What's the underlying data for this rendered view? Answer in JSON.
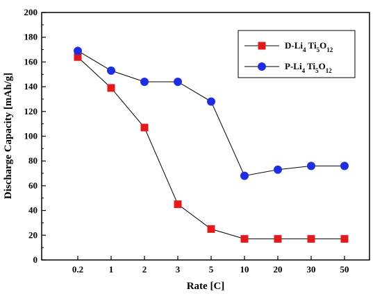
{
  "chart_data": {
    "type": "line",
    "categories": [
      "0.2",
      "1",
      "2",
      "3",
      "5",
      "10",
      "20",
      "30",
      "50"
    ],
    "xlabel": "Rate [C]",
    "ylabel": "Discharge Capacity [mAh/g]",
    "ylim": [
      0,
      200
    ],
    "yticks": [
      0,
      20,
      40,
      60,
      80,
      100,
      120,
      140,
      160,
      180,
      200
    ],
    "grid": false,
    "legend_position": "top-right",
    "series": [
      {
        "name": "D-Li4Ti5O12",
        "label_parts": [
          "D-Li",
          "4",
          " Ti",
          "5",
          "O",
          "12"
        ],
        "marker": "square",
        "color": "#e31a1c",
        "values": [
          164,
          139,
          107,
          45,
          25,
          17,
          17,
          17,
          17
        ]
      },
      {
        "name": "P-Li4Ti5O12",
        "label_parts": [
          "P-Li",
          "4",
          " Ti",
          "5",
          "O",
          "12"
        ],
        "marker": "circle",
        "color": "#1f2fe0",
        "values": [
          169,
          153,
          144,
          144,
          128,
          68,
          73,
          76,
          76
        ]
      }
    ]
  }
}
